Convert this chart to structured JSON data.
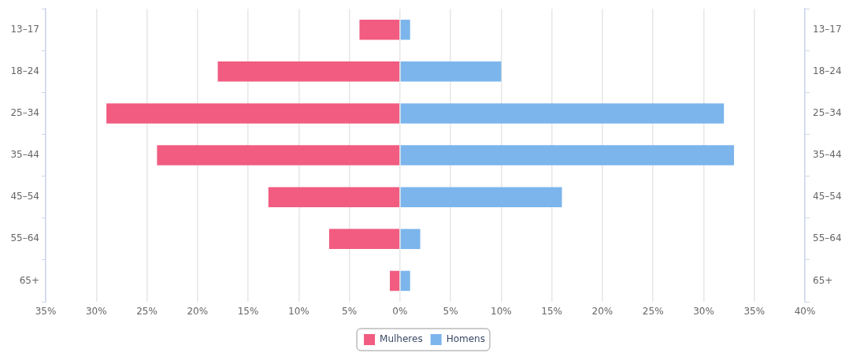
{
  "chart_data": {
    "type": "bar",
    "orientation": "horizontal",
    "stacked": true,
    "categories": [
      "13–17",
      "18–24",
      "25–34",
      "35–44",
      "45–54",
      "55–64",
      "65+"
    ],
    "y2_categories": [
      "13–17",
      "18–24",
      "25–34",
      "35–44",
      "45–54",
      "55–64",
      "65+"
    ],
    "series": [
      {
        "name": "Mulheres",
        "color": "#f15c80",
        "values": [
          -4,
          -18,
          -29,
          -24,
          -13,
          -7,
          -1
        ]
      },
      {
        "name": "Homens",
        "color": "#7cb5ec",
        "values": [
          1,
          10,
          32,
          33,
          16,
          2,
          1
        ]
      }
    ],
    "xlim": [
      -35,
      40
    ],
    "xticks": [
      {
        "value": -35,
        "label": "35%"
      },
      {
        "value": -30,
        "label": "30%"
      },
      {
        "value": -25,
        "label": "25%"
      },
      {
        "value": -20,
        "label": "20%"
      },
      {
        "value": -15,
        "label": "15%"
      },
      {
        "value": -10,
        "label": "10%"
      },
      {
        "value": -5,
        "label": "5%"
      },
      {
        "value": 0,
        "label": "0%"
      },
      {
        "value": 5,
        "label": "5%"
      },
      {
        "value": 10,
        "label": "10%"
      },
      {
        "value": 15,
        "label": "15%"
      },
      {
        "value": 20,
        "label": "20%"
      },
      {
        "value": 25,
        "label": "25%"
      },
      {
        "value": 30,
        "label": "30%"
      },
      {
        "value": 35,
        "label": "35%"
      },
      {
        "value": 40,
        "label": "40%"
      }
    ],
    "grid": "x",
    "legend": "bottom"
  }
}
